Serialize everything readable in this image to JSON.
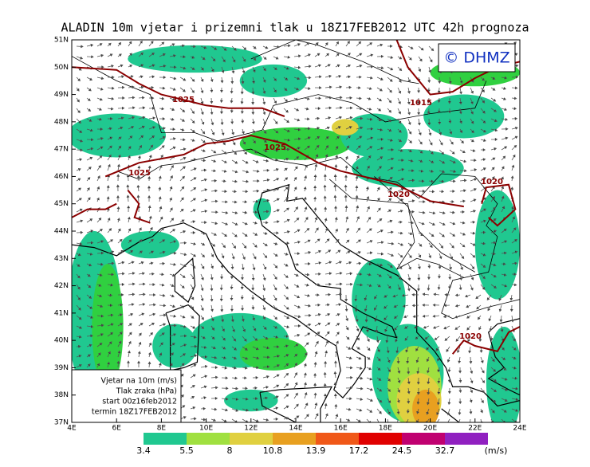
{
  "header": {
    "title": "ALADIN 10m vjetar i prizemni tlak u 18Z17FEB2012 UTC 42h prognoza"
  },
  "logo": "© DHMZ",
  "axes": {
    "lat_labels": [
      "51N",
      "50N",
      "49N",
      "48N",
      "47N",
      "46N",
      "45N",
      "44N",
      "43N",
      "42N",
      "41N",
      "40N",
      "39N",
      "38N",
      "37N"
    ],
    "lon_labels": [
      "4E",
      "6E",
      "8E",
      "10E",
      "12E",
      "14E",
      "16E",
      "18E",
      "20E",
      "22E",
      "24E"
    ]
  },
  "isobars": [
    {
      "label": "1025"
    },
    {
      "label": "1025"
    },
    {
      "label": "1025"
    },
    {
      "label": "1015"
    },
    {
      "label": "1020"
    },
    {
      "label": "1020"
    },
    {
      "label": "1020"
    }
  ],
  "legend_box": [
    "Vjetar na 10m (m/s)",
    "Tlak zraka (hPa)",
    "start 00z16feb2012",
    "termin 18Z17FEB2012"
  ],
  "colorbar": {
    "values": [
      3.4,
      5.5,
      8,
      10.8,
      13.9,
      17.2,
      24.5,
      32.7
    ],
    "colors": [
      "#20c890",
      "#30d040",
      "#a0e040",
      "#e0d040",
      "#e8a020",
      "#f05818",
      "#e00000",
      "#c00070"
    ],
    "top_color": "#9020c0",
    "unit": "(m/s)"
  }
}
